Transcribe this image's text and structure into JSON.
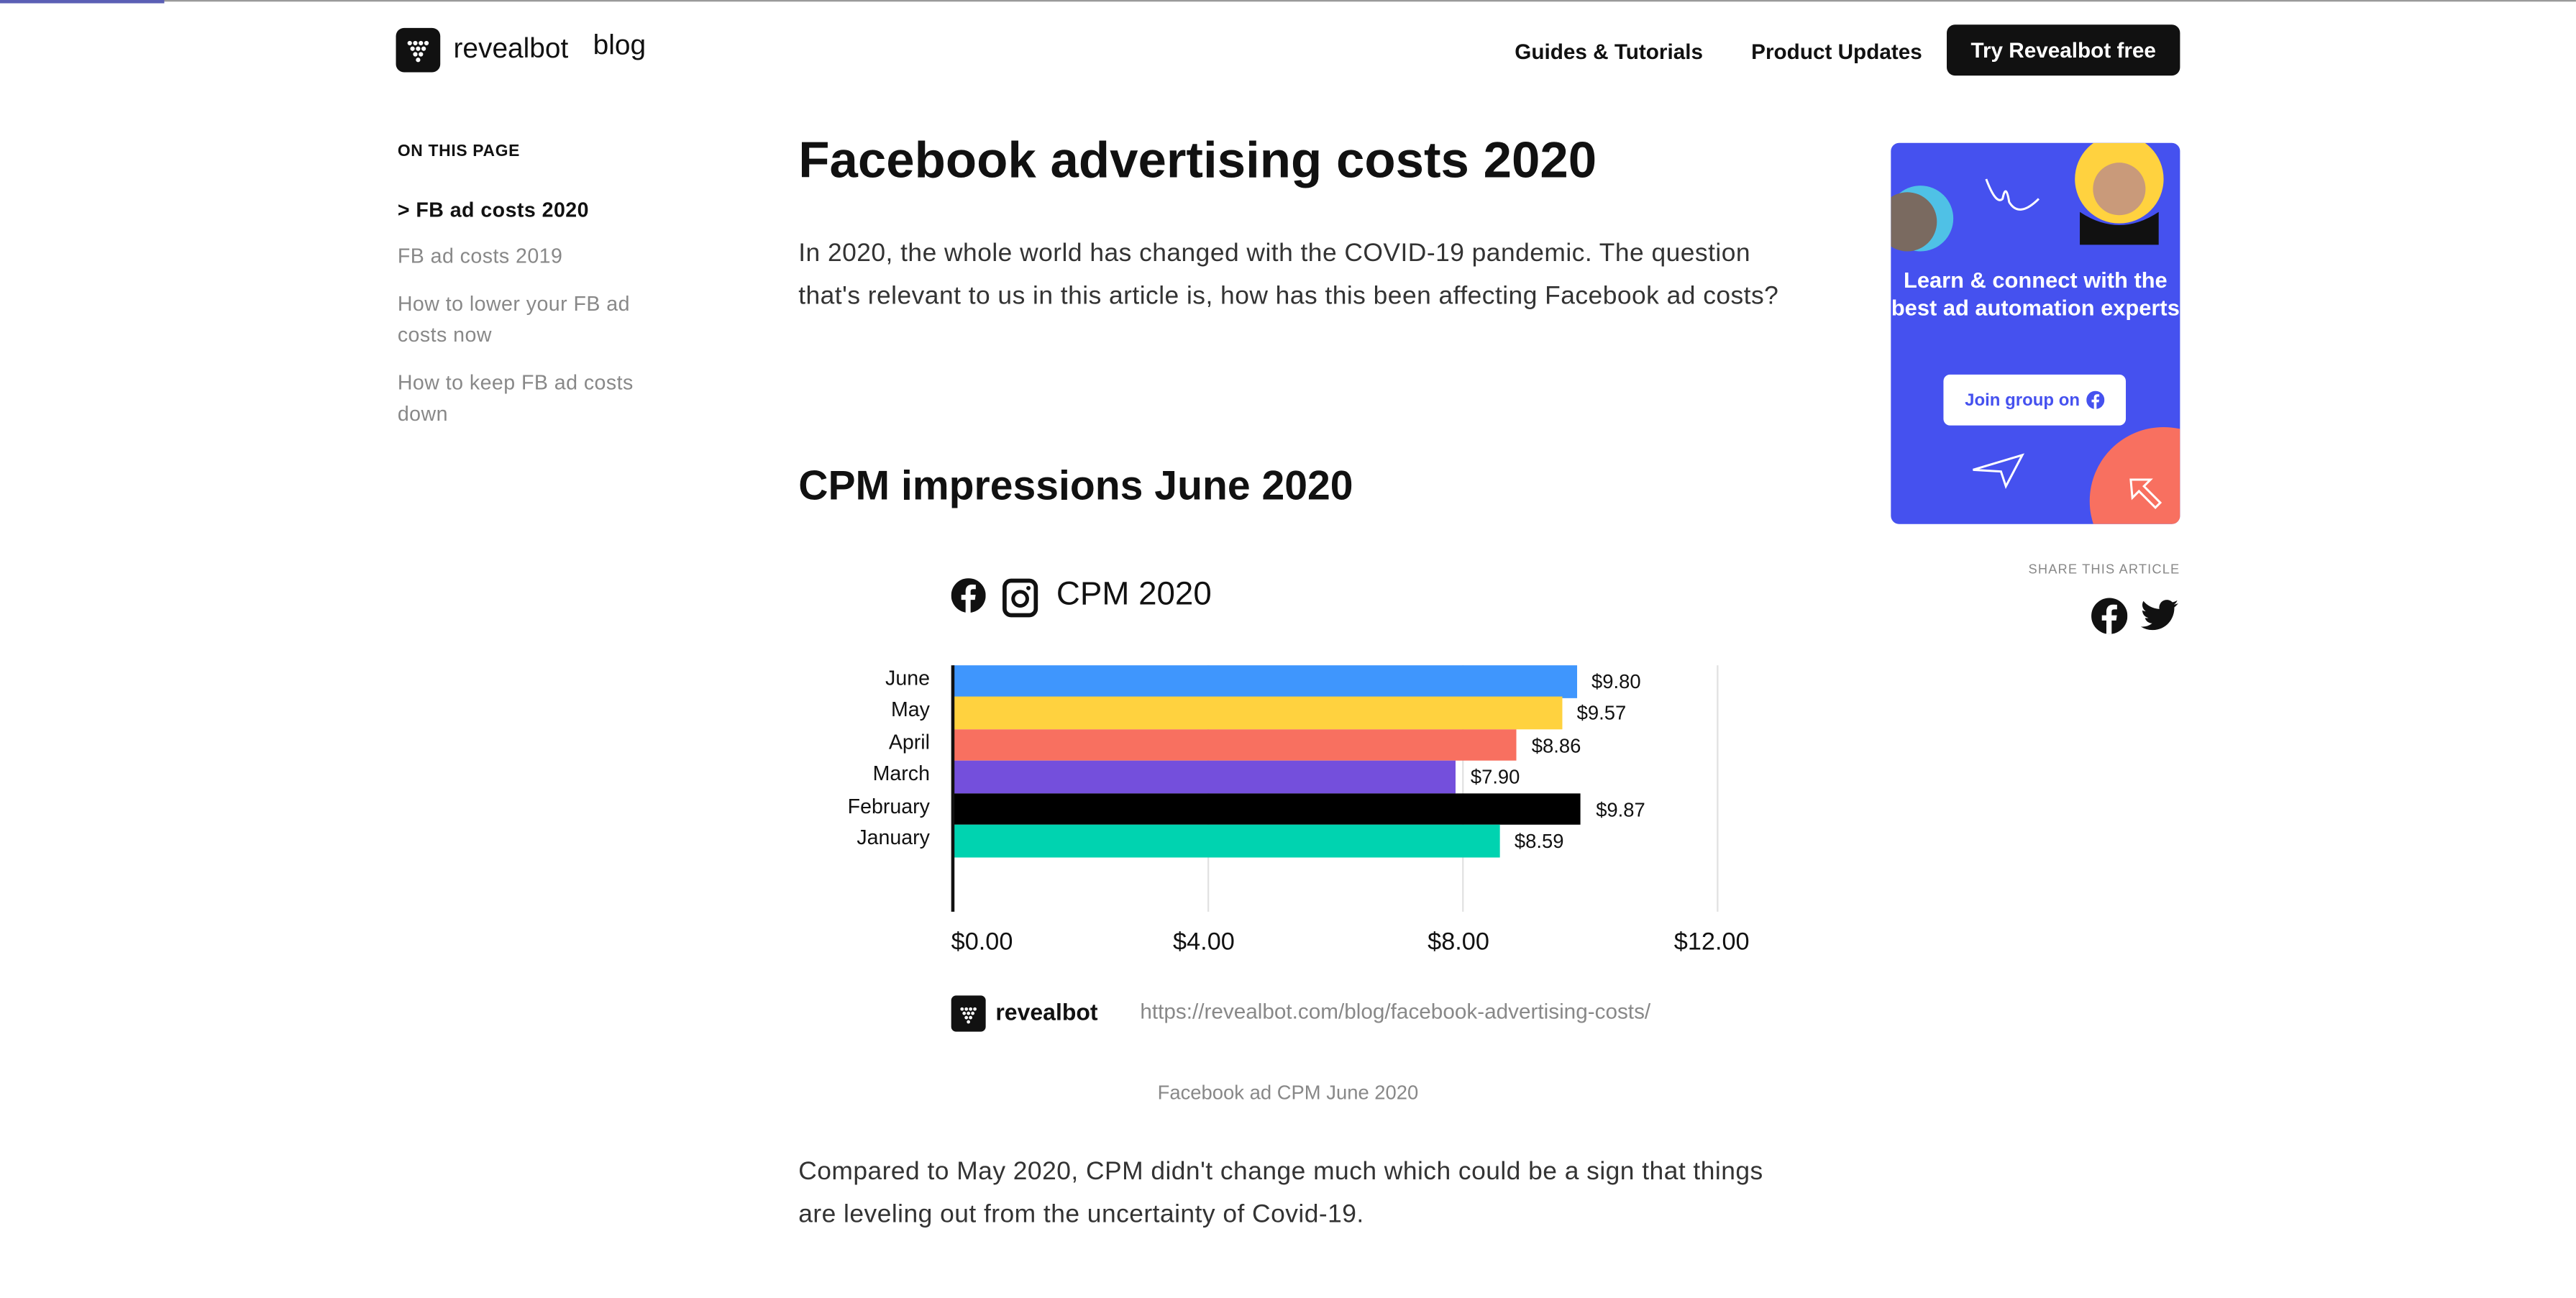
{
  "progress": {
    "fraction": 0.064,
    "color": "#5b5fb5"
  },
  "header": {
    "brand": "revealbot",
    "blog": "blog",
    "nav": [
      "Guides & Tutorials",
      "Product Updates"
    ],
    "cta": "Try Revealbot free"
  },
  "sidebar": {
    "title": "ON THIS PAGE",
    "items": [
      {
        "label": "> FB ad costs 2020",
        "active": true
      },
      {
        "label": "FB ad costs 2019"
      },
      {
        "label": "How to lower your FB ad costs now"
      },
      {
        "label": "How to keep FB ad costs down"
      }
    ]
  },
  "article": {
    "title": "Facebook advertising costs 2020",
    "intro": "In 2020, the whole world has changed with the COVID-19 pandemic. The question that's relevant to us in this article is, how has this been affecting Facebook ad costs?",
    "section_title": "CPM impressions June 2020",
    "caption": "Facebook ad CPM June 2020",
    "outro": "Compared to May 2020, CPM didn't change much which could be a sign that things are leveling out from the uncertainty of Covid-19."
  },
  "chart_data": {
    "type": "bar",
    "orientation": "horizontal",
    "title": "CPM 2020",
    "categories": [
      "June",
      "May",
      "April",
      "March",
      "February",
      "January"
    ],
    "values": [
      9.8,
      9.57,
      8.86,
      7.9,
      9.87,
      8.59
    ],
    "value_labels": [
      "$9.80",
      "$9.57",
      "$8.86",
      "$7.90",
      "$9.87",
      "$8.59"
    ],
    "colors": [
      "#3f96fd",
      "#ffd23f",
      "#f87060",
      "#744fdc",
      "#000000",
      "#00d3b0"
    ],
    "xlim": [
      0,
      12
    ],
    "xticks": [
      0,
      4,
      8,
      12
    ],
    "xtick_labels": [
      "$0.00",
      "$4.00",
      "$8.00",
      "$12.00"
    ],
    "grid": true,
    "footer_brand": "revealbot",
    "footer_url": "https://revealbot.com/blog/facebook-advertising-costs/"
  },
  "promo": {
    "text": "Learn & connect with the best ad automation experts",
    "button": "Join group on",
    "bg": "#4551ef"
  },
  "share": {
    "label": "SHARE THIS ARTICLE"
  }
}
